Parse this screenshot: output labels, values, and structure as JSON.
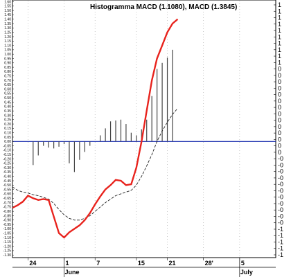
{
  "chart_data": {
    "type": "line",
    "title": "Histogramma MACD (1.1080), MACD (1.3845)",
    "colors": {
      "macd": "#e8231d",
      "signal": "#222222",
      "histogram": "#444444",
      "zero_line": "#0a1fa8",
      "grid": "#b0b0b0"
    },
    "grid": true,
    "left_ticks": [
      "1.60",
      "1.55",
      "1.50",
      "1.45",
      "1.40",
      "1.35",
      "1.30",
      "1.25",
      "1.20",
      "1.15",
      "1.10",
      "1.05",
      "1.00",
      "0.95",
      "0.90",
      "0.85",
      "0.80",
      "0.75",
      "0.70",
      "0.65",
      "0.60",
      "0.55",
      "0.50",
      "0.45",
      "0.40",
      "0.35",
      "0.30",
      "0.25",
      "0.20",
      "0.15",
      "0.10",
      "0.05",
      "0.00",
      "-0.05",
      "-0.10",
      "-0.15",
      "-0.20",
      "-0.25",
      "-0.30",
      "-0.35",
      "-0.40",
      "-0.45",
      "-0.50",
      "-0.55",
      "-0.60",
      "-0.65",
      "-0.70",
      "-0.75",
      "-0.80",
      "-0.85",
      "-0.90",
      "-0.95",
      "-1.00",
      "-1.05",
      "-1.10",
      "-1.15",
      "-1.20",
      "-1.25",
      "-1.30"
    ],
    "right_ticks": [
      "1",
      "1",
      "1",
      "1",
      "1",
      "1",
      "1",
      "1",
      "1",
      "1",
      "0",
      "0",
      "0",
      "0",
      "0",
      "0",
      "0",
      "0",
      "0",
      "0",
      "0",
      "0",
      "0",
      "0",
      "-0",
      "-0",
      "-0",
      "-0",
      "-0",
      "-0",
      "-0",
      "-0",
      "-0",
      "-0",
      "-0",
      "-1",
      "-1",
      "-1",
      "-1",
      "-1"
    ],
    "dates": [
      "24",
      "1",
      "7",
      "15",
      "21",
      "28'",
      "5"
    ],
    "months": [
      "June",
      "July"
    ],
    "ylim": [
      -1.33,
      1.62
    ],
    "x_range": [
      0,
      51
    ],
    "date_positions": [
      3,
      10,
      16,
      24,
      30,
      37,
      44
    ],
    "month_positions": [
      10,
      44
    ],
    "bar_positions": [
      4,
      5,
      6,
      7,
      8,
      9,
      10,
      11,
      12,
      13,
      14,
      15,
      16,
      17,
      18,
      19,
      20,
      21,
      22,
      23,
      24,
      25,
      26,
      27,
      28,
      29,
      30,
      31,
      32
    ],
    "histogram": [
      -0.27,
      -0.16,
      -0.05,
      -0.07,
      -0.08,
      -0.06,
      -0.03,
      -0.25,
      -0.35,
      -0.21,
      -0.12,
      -0.05,
      0.0,
      0.07,
      0.15,
      0.23,
      0.24,
      0.25,
      0.2,
      0.1,
      0.07,
      0.14,
      0.25,
      0.52,
      0.83,
      0.9,
      0.96,
      1.05,
      0.0
    ],
    "series": [
      {
        "x": [
          0,
          1,
          2,
          3,
          4,
          5,
          6,
          7,
          8,
          9,
          10,
          11,
          12,
          13,
          14,
          15,
          16,
          17,
          18,
          19,
          20,
          21,
          22,
          23,
          24,
          25,
          26,
          27,
          28,
          29,
          30,
          31,
          32
        ],
        "values": [
          -0.76,
          -0.73,
          -0.69,
          -0.62,
          -0.65,
          -0.67,
          -0.66,
          -0.67,
          -0.86,
          -1.05,
          -1.1,
          -1.04,
          -1.0,
          -0.96,
          -0.9,
          -0.82,
          -0.72,
          -0.63,
          -0.55,
          -0.5,
          -0.44,
          -0.45,
          -0.5,
          -0.49,
          -0.3,
          0.0,
          0.35,
          0.7,
          0.95,
          1.1,
          1.25,
          1.35,
          1.4
        ]
      },
      {
        "x": [
          0,
          1,
          2,
          3,
          4,
          5,
          6,
          7,
          8,
          9,
          10,
          11,
          12,
          13,
          14,
          15,
          16,
          17,
          18,
          19,
          20,
          21,
          22,
          23,
          24,
          25,
          26,
          27,
          28,
          29,
          30,
          31,
          32
        ],
        "values": [
          -0.52,
          -0.56,
          -0.58,
          -0.59,
          -0.61,
          -0.62,
          -0.64,
          -0.66,
          -0.71,
          -0.78,
          -0.84,
          -0.88,
          -0.9,
          -0.9,
          -0.88,
          -0.85,
          -0.8,
          -0.75,
          -0.7,
          -0.66,
          -0.62,
          -0.6,
          -0.58,
          -0.56,
          -0.5,
          -0.4,
          -0.28,
          -0.15,
          0.0,
          0.12,
          0.22,
          0.31,
          0.38
        ]
      }
    ]
  }
}
